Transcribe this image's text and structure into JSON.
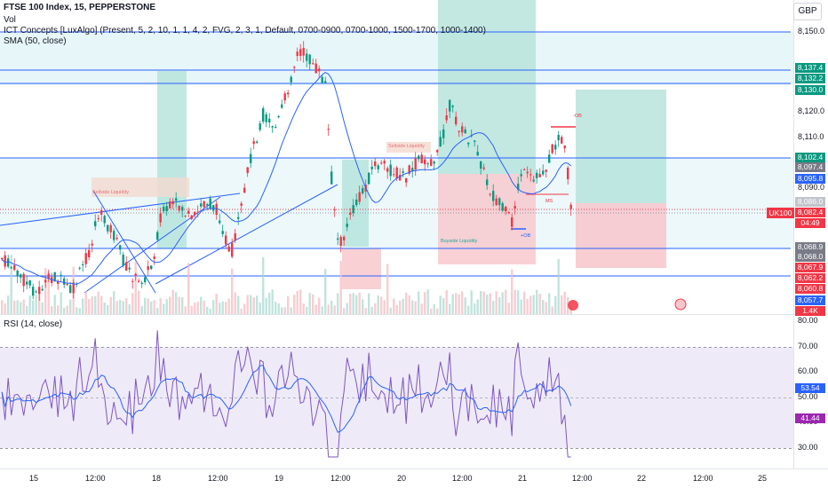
{
  "header": {
    "title": "FTSE 100 Index, 15, PEPPERSTONE",
    "vol": "Vol",
    "indicator": "ICT Concepts [LuxAlgo] (Present, 5, 2, 10, 1, 1, 4, 2, FVG, 2, 3, 1, Default, 0700-0900, 0700-1000, 1500-1700, 1000-1400)",
    "sma": "SMA (50, close)",
    "rsi": "RSI (14, close)",
    "currency": "GBP"
  },
  "price_axis": {
    "ticks": [
      "8,150.0",
      "8,140.0",
      "8,130.0",
      "8,120.0",
      "8,110.0",
      "8,100.0",
      "8,090.0",
      "8,080.0",
      "8,070.0",
      "8,060.0",
      "8,050.0"
    ],
    "tags": [
      {
        "text": "8,137.4",
        "color": "#089981"
      },
      {
        "text": "8,132.2",
        "color": "#089981"
      },
      {
        "text": "8,130.0",
        "color": "#089981"
      },
      {
        "text": "8,102.4",
        "color": "#089981"
      },
      {
        "text": "8,097.4",
        "color": "#787b86"
      },
      {
        "text": "8,095.8",
        "color": "#2962ff"
      },
      {
        "text": "8,086.0",
        "color": "#c2c4cc"
      },
      {
        "text": "8,082.4",
        "color": "#f23645"
      },
      {
        "text": "04:49",
        "color": "#f23645"
      },
      {
        "text": "8,068.9",
        "color": "#787b86"
      },
      {
        "text": "8,068.0",
        "color": "#787b86"
      },
      {
        "text": "8,067.9",
        "color": "#f23645"
      },
      {
        "text": "8,062.2",
        "color": "#f23645"
      },
      {
        "text": "8,060.8",
        "color": "#f23645"
      },
      {
        "text": "8,057.7",
        "color": "#2962ff"
      },
      {
        "text": "1.4K",
        "color": "#f23645"
      }
    ],
    "symbol_tag": "UK100"
  },
  "rsi_axis": {
    "ticks": [
      "80.00",
      "70.00",
      "60.00",
      "50.00",
      "40.00",
      "30.00"
    ],
    "tags": [
      {
        "text": "53.54",
        "color": "#2962ff"
      },
      {
        "text": "41.44",
        "color": "#9c27b0"
      }
    ]
  },
  "time_axis": {
    "labels": [
      "15",
      "12:00",
      "18",
      "12:00",
      "19",
      "12:00",
      "20",
      "12:00",
      "21",
      "12:00",
      "22",
      "12:00",
      "25"
    ]
  },
  "overlay_labels": {
    "sellside_1": "Sellside Liquidity",
    "sellside_2": "Sellside Liquidity",
    "buyside": "Buyside Liquidity",
    "ob_plus": "+OB",
    "ob_minus": "-OB",
    "ms": "MS"
  },
  "colors": {
    "up": "#089981",
    "down": "#f23645",
    "sma": "#2962ff",
    "rsi": "#7e57c2"
  }
}
